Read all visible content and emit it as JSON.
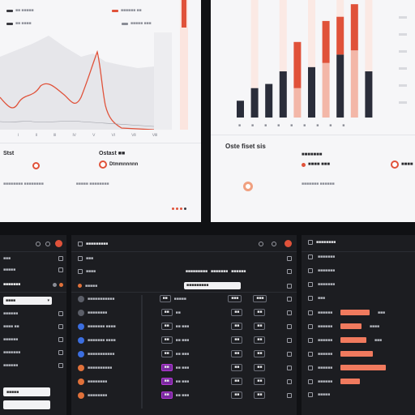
{
  "panel_a": {
    "legend": [
      {
        "label": "■■ ■■■■■",
        "color": "#3a3a40"
      },
      {
        "label": "■■■■■■ ■■",
        "color": "#e0523a"
      },
      {
        "label": "■■ ■■■■",
        "color": "#3a3a40"
      },
      {
        "label": "■■■■■ ■■■",
        "color": "#8a8d96"
      }
    ],
    "ticks": [
      "Ⅰ",
      "Ⅱ",
      "Ⅲ",
      "Ⅳ",
      "Ⅴ",
      "Ⅵ",
      "Ⅶ",
      "Ⅷ"
    ],
    "stat1_title": "Stst",
    "stat2_title": "Ostast ■■",
    "stat1_value": "",
    "stat2_value": "Dtmmnnnnn",
    "footnote_left": "■■■■■■■■ ■■■■■■■■",
    "footnote_right": "■■■■■ ■■■■■■■■"
  },
  "panel_b": {
    "ticks": [
      "■",
      "■",
      "■",
      "■",
      "■",
      "■",
      "■",
      "■",
      "■",
      "■"
    ],
    "stat1_title": "Oste fiset sis",
    "stat2_title": "■■■■■■■",
    "stat2_value": "■■■■ ■■■",
    "stat3_value": "■■■■",
    "footnote": "■■■■■■■ ■■■■■■"
  },
  "chart_data": {
    "type": "bar",
    "categories": [
      "1",
      "2",
      "3",
      "4",
      "5",
      "6",
      "7",
      "8",
      "9",
      "10"
    ],
    "series": [
      {
        "values": [
          20,
          35,
          40,
          55,
          35,
          60,
          65,
          75,
          80,
          55
        ]
      },
      {
        "values": [
          0,
          0,
          0,
          0,
          55,
          0,
          50,
          45,
          55,
          0
        ]
      }
    ],
    "ylim": [
      0,
      140
    ]
  },
  "sidebar": {
    "header_icons": [
      "gear-icon",
      "info-icon",
      "notification-icon"
    ],
    "items": [
      {
        "label": "■■■",
        "icon": "doc-icon"
      },
      {
        "label": "■■■■■",
        "icon": "doc-icon"
      },
      {
        "label": "■■■■■■■",
        "icon": "settings-icon"
      },
      {
        "label": "■■■■■■",
        "icon": "doc-icon"
      },
      {
        "label": "■■■■ ■■",
        "icon": "doc-icon"
      },
      {
        "label": "■■■■■■",
        "icon": "doc-icon"
      },
      {
        "label": "■■■■■■■",
        "icon": "doc-icon"
      },
      {
        "label": "■■■■■■",
        "icon": "doc-icon"
      }
    ],
    "input_value": "■■■■",
    "button_label": "■■■■■"
  },
  "table_panel": {
    "title": "■■■■■■■■■",
    "tab1": "■■■",
    "tab2": "■■■■",
    "tab3": "■■■■■",
    "columns": [
      "■■■■■■■■■",
      "■■■■■■■",
      "■■■■■■"
    ],
    "search_placeholder": "■■■■■■■■■",
    "rows": [
      {
        "name": "■■■■■■■■■■■",
        "color": "#5b5e68",
        "a": "■■",
        "b": "■■■■■",
        "c": "■■■"
      },
      {
        "name": "■■■■■■■■",
        "color": "#5b5e68",
        "a": "■■",
        "b": "■■",
        "c": "■■"
      },
      {
        "name": "■■■■■■■ ■■■■",
        "color": "#3b6ee0",
        "a": "■■",
        "b": "■■ ■■■",
        "c": "■■"
      },
      {
        "name": "■■■■■■■ ■■■■",
        "color": "#3b6ee0",
        "a": "■■",
        "b": "■■ ■■■",
        "c": "■■"
      },
      {
        "name": "■■■■■■■■■■■",
        "color": "#3b6ee0",
        "a": "■■",
        "b": "■■ ■■■",
        "c": "■■"
      },
      {
        "name": "■■■■■■■■■■",
        "color": "#e0713a",
        "a": "■■",
        "b": "■■ ■■■",
        "c": "■■"
      },
      {
        "name": "■■■■■■■■",
        "color": "#e0713a",
        "a": "■■",
        "b": "■■ ■■■",
        "c": "■■"
      },
      {
        "name": "■■■■■■■■",
        "color": "#e0713a",
        "a": "■■",
        "b": "■■ ■■■",
        "c": "■■"
      }
    ]
  },
  "right_panel": {
    "title": "■■■■■■■■",
    "items": [
      {
        "label": "■■■■■■■"
      },
      {
        "label": "■■■■■■■"
      },
      {
        "label": "■■■■■■■"
      },
      {
        "label": "■■■"
      },
      {
        "label": "■■■■■■"
      },
      {
        "label": "■■■■■■"
      },
      {
        "label": "■■■■■■"
      },
      {
        "label": "■■■■■■"
      },
      {
        "label": "■■■■■■"
      },
      {
        "label": "■■■■■■"
      },
      {
        "label": "■■■■■"
      }
    ],
    "progress": [
      0.45,
      0.33,
      0.4,
      0.5,
      0.7,
      0.3
    ],
    "values": [
      "■■■",
      "■■■■",
      "■■■",
      "",
      "",
      ""
    ]
  }
}
